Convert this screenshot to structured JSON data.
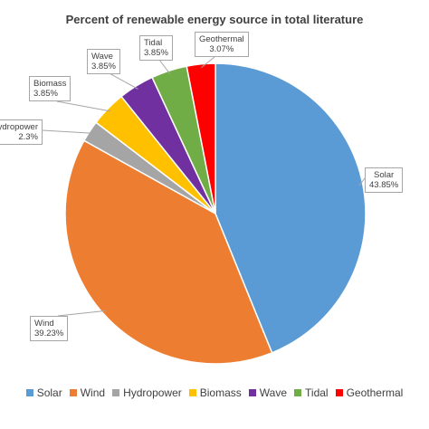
{
  "chart_data": {
    "type": "pie",
    "title": "Percent of renewable energy source in total literature",
    "categories": [
      "Solar",
      "Wind",
      "Hydropower",
      "Biomass",
      "Wave",
      "Tidal",
      "Geothermal"
    ],
    "values": [
      43.85,
      39.23,
      2.3,
      3.85,
      3.85,
      3.85,
      3.07
    ],
    "value_labels": [
      "43.85%",
      "39.23%",
      "2.3%",
      "3.85%",
      "3.85%",
      "3.85%",
      "3.07%"
    ],
    "colors": [
      "#5b9bd5",
      "#ed7d31",
      "#a5a5a5",
      "#ffc000",
      "#7030a0",
      "#70ad47",
      "#ff0000"
    ],
    "legend": "bottom",
    "start": "12 o'clock, clockwise"
  }
}
